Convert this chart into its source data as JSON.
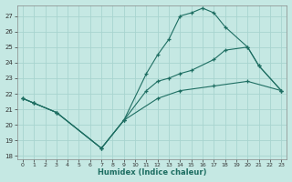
{
  "xlabel": "Humidex (Indice chaleur)",
  "background_color": "#c5e8e3",
  "grid_color": "#a8d4cf",
  "line_color": "#1e6e62",
  "xlim": [
    -0.5,
    23.5
  ],
  "ylim": [
    17.8,
    27.7
  ],
  "xticks": [
    0,
    1,
    2,
    3,
    4,
    5,
    6,
    7,
    8,
    9,
    10,
    11,
    12,
    13,
    14,
    15,
    16,
    17,
    18,
    19,
    20,
    21,
    22,
    23
  ],
  "yticks": [
    18,
    19,
    20,
    21,
    22,
    23,
    24,
    25,
    26,
    27
  ],
  "series": [
    {
      "x": [
        0,
        1,
        3,
        7,
        9,
        12,
        14,
        17,
        20,
        23
      ],
      "y": [
        21.7,
        21.4,
        20.8,
        18.5,
        20.3,
        21.7,
        22.2,
        22.5,
        22.8,
        22.2
      ]
    },
    {
      "x": [
        0,
        1,
        3,
        7,
        9,
        11,
        12,
        13,
        14,
        15,
        17,
        18,
        20,
        21,
        23
      ],
      "y": [
        21.7,
        21.4,
        20.8,
        18.5,
        20.3,
        22.2,
        22.8,
        23.0,
        23.3,
        23.5,
        24.2,
        24.8,
        25.0,
        23.8,
        22.2
      ]
    },
    {
      "x": [
        0,
        1,
        3,
        7,
        9,
        11,
        12,
        13,
        14,
        15,
        16,
        17,
        18,
        20,
        21,
        23
      ],
      "y": [
        21.7,
        21.4,
        20.8,
        18.5,
        20.3,
        23.3,
        24.5,
        25.5,
        27.0,
        27.2,
        27.5,
        27.2,
        26.3,
        25.0,
        23.8,
        22.2
      ]
    }
  ]
}
